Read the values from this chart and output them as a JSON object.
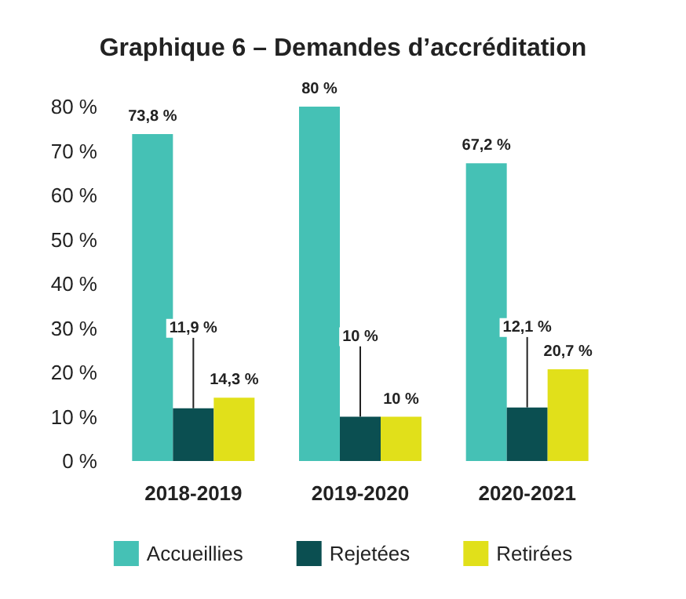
{
  "chart_data": {
    "type": "bar",
    "title": "Graphique 6 – Demandes d’accréditation",
    "categories": [
      "2018-2019",
      "2019-2020",
      "2020-2021"
    ],
    "series": [
      {
        "name": "Accueillies",
        "color": "#45c1b5",
        "values": [
          73.8,
          80,
          67.2
        ],
        "value_labels": [
          "73,8 %",
          "80 %",
          "67,2 %"
        ]
      },
      {
        "name": "Rejetées",
        "color": "#0b4f51",
        "values": [
          11.9,
          10,
          12.1
        ],
        "value_labels": [
          "11,9 %",
          "10 %",
          "12,1 %"
        ]
      },
      {
        "name": "Retirées",
        "color": "#e1e01a",
        "values": [
          14.3,
          10,
          20.7
        ],
        "value_labels": [
          "14,3 %",
          "10 %",
          "20,7 %"
        ]
      }
    ],
    "ylim": [
      0,
      80
    ],
    "yticks": [
      {
        "value": 0,
        "label": "0 %"
      },
      {
        "value": 10,
        "label": "10 %"
      },
      {
        "value": 20,
        "label": "20 %"
      },
      {
        "value": 30,
        "label": "30 %"
      },
      {
        "value": 40,
        "label": "40 %"
      },
      {
        "value": 50,
        "label": "50 %"
      },
      {
        "value": 60,
        "label": "60 %"
      },
      {
        "value": 70,
        "label": "70 %"
      },
      {
        "value": 80,
        "label": "80 %"
      }
    ],
    "grid": false,
    "legend": "bottom"
  }
}
